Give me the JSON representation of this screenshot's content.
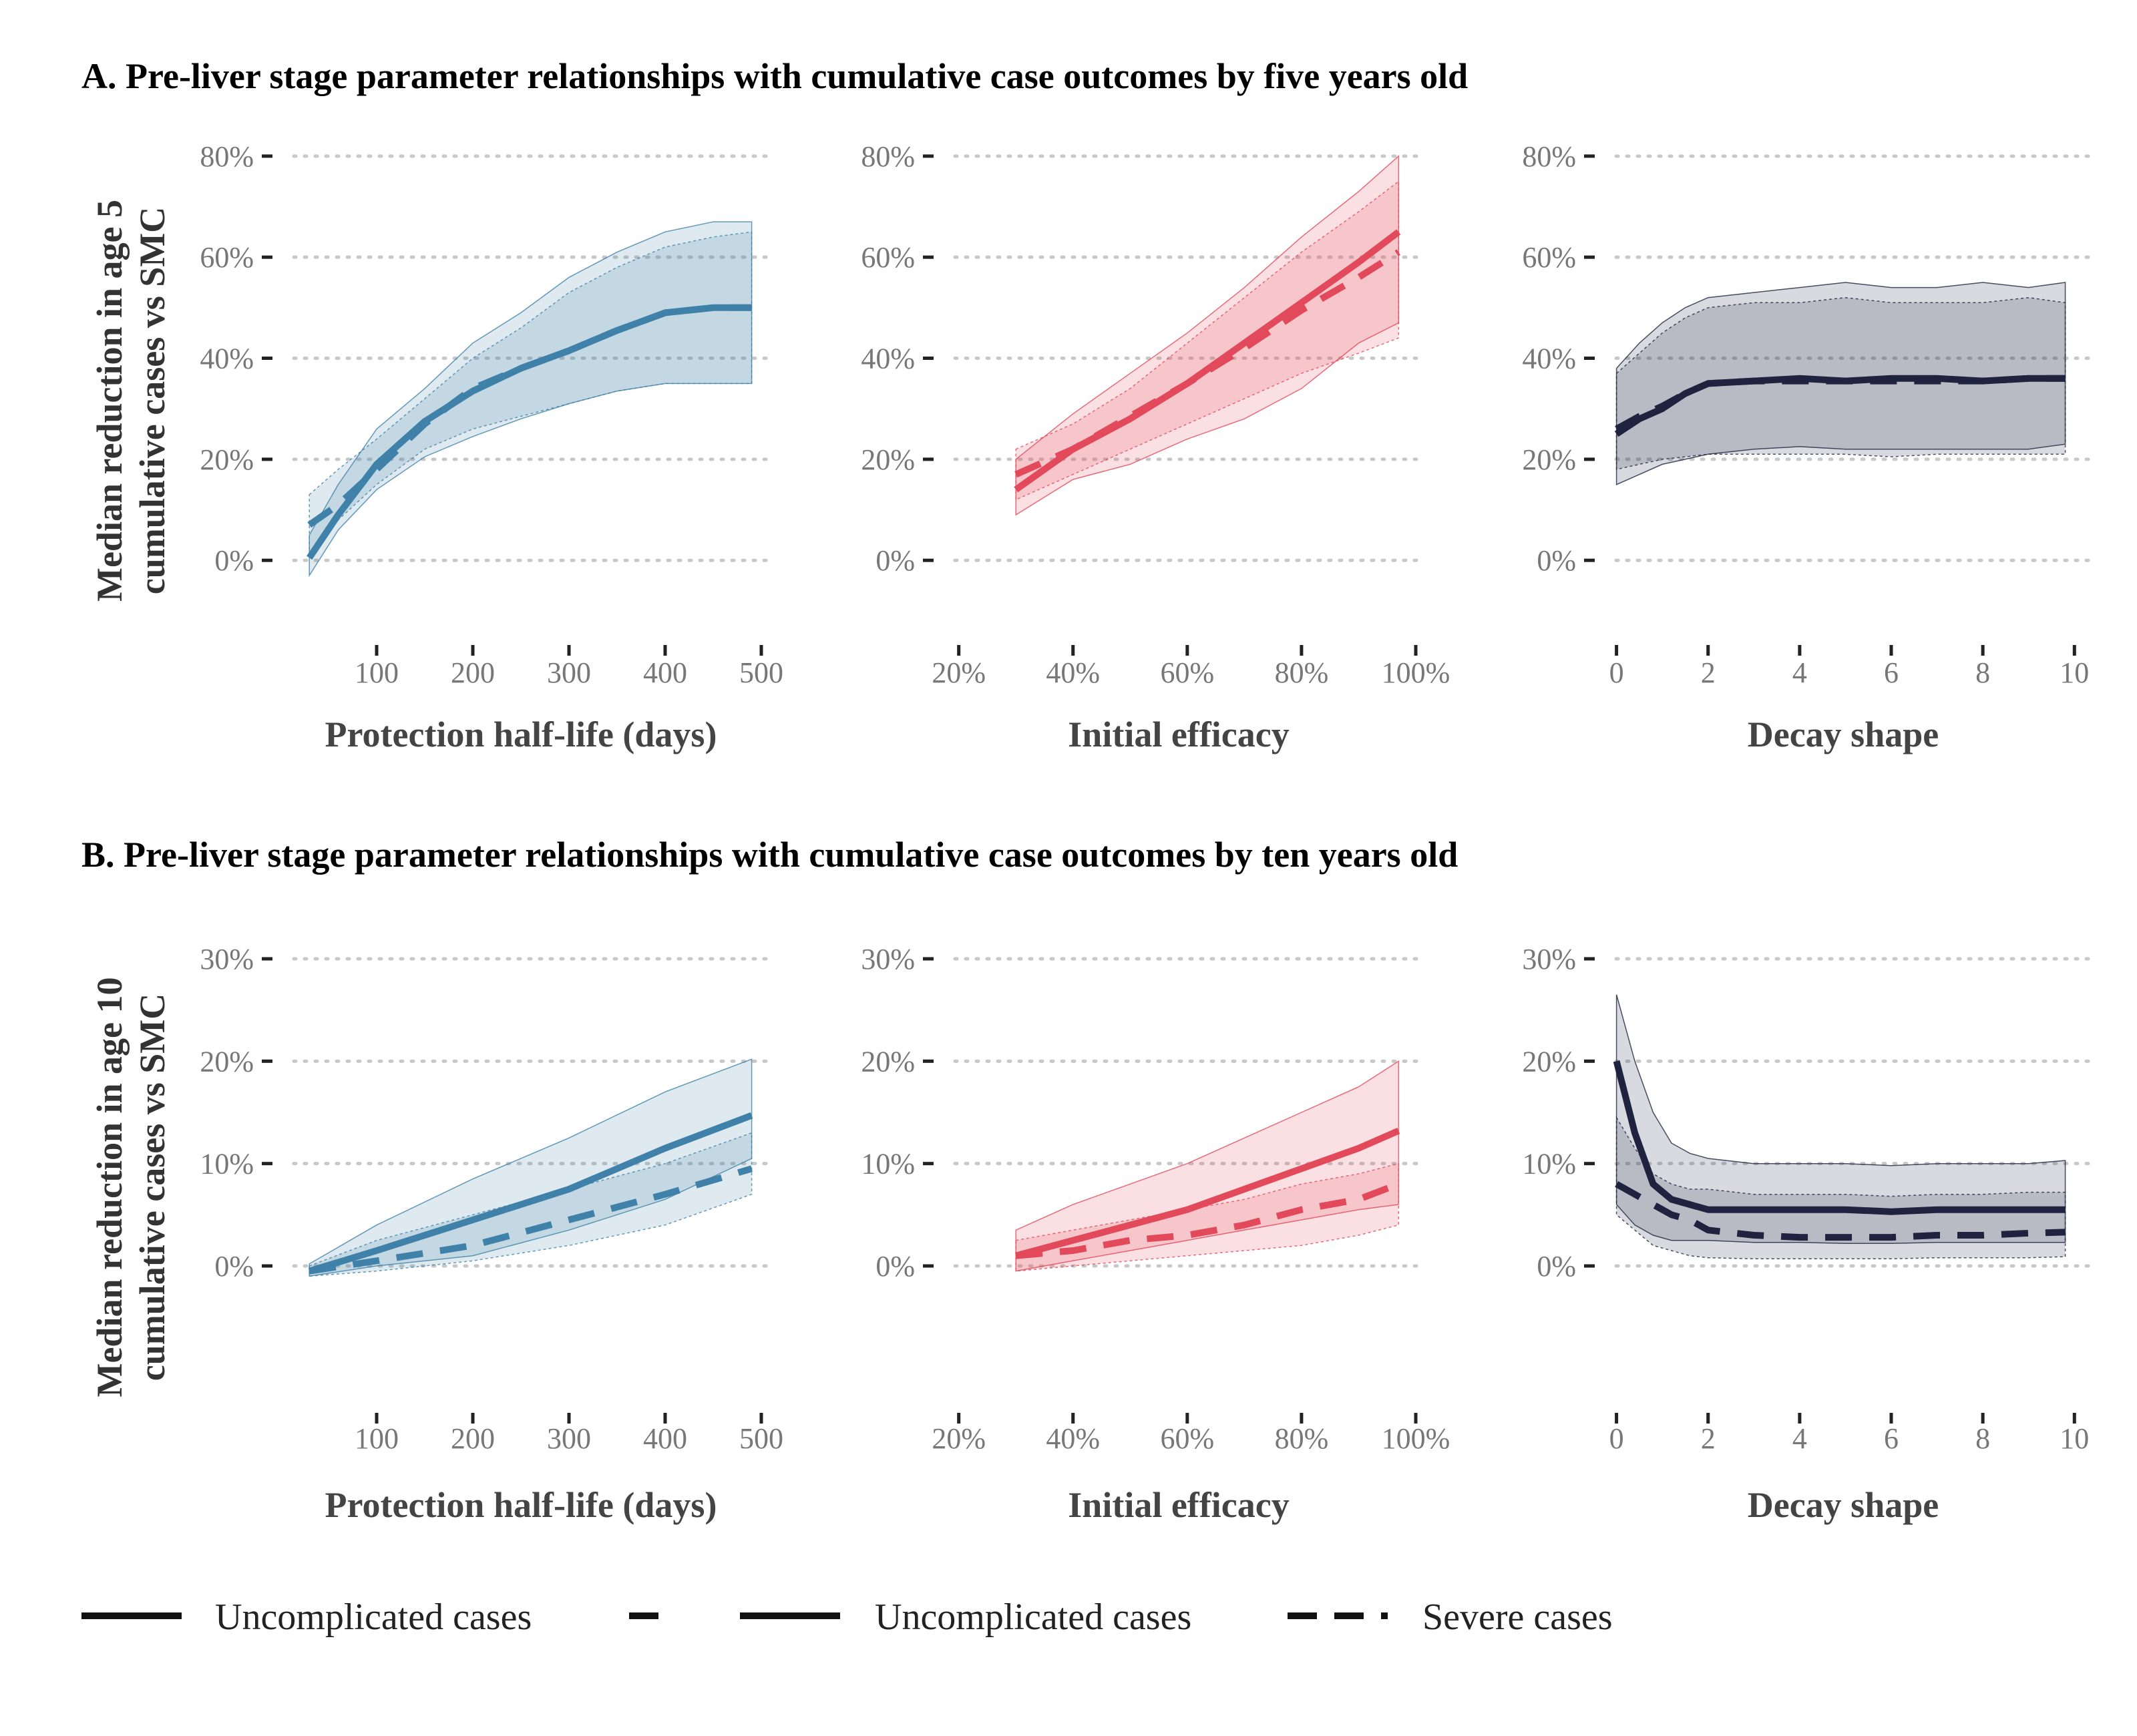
{
  "colors": {
    "half_life": "#3F81A8",
    "efficacy": "#E2495B",
    "decay": "#1F2340"
  },
  "chart_data": [
    {
      "type": "line",
      "title": "A. Pre-liver stage parameter relationships with cumulative case outcomes by five years old",
      "ylabel": "Median reduction in age 5 cumulative cases vs SMC",
      "ylim": [
        -12,
        85
      ],
      "yticks": [
        0,
        20,
        40,
        60,
        80
      ],
      "yticklabels": [
        "0%",
        "20%",
        "40%",
        "60%",
        "80%"
      ],
      "panels": [
        {
          "xlabel": "Protection half-life (days)",
          "xlim": [
            0,
            500
          ],
          "xticks": [
            100,
            200,
            300,
            400,
            500
          ],
          "xticklabels": [
            "100",
            "200",
            "300",
            "400",
            "500"
          ],
          "color": "#3F81A8",
          "x": [
            30,
            60,
            100,
            150,
            200,
            250,
            300,
            350,
            400,
            450,
            490
          ],
          "series": [
            {
              "name": "Uncomplicated cases",
              "values": [
                0.5,
                9,
                19,
                27.5,
                33.5,
                38,
                41.5,
                45.5,
                49,
                50,
                50
              ],
              "lower": [
                -3,
                6,
                14,
                20.5,
                24.5,
                28,
                31,
                33.5,
                35,
                35,
                35
              ],
              "upper": [
                5,
                15,
                26,
                34,
                43,
                49,
                56,
                61,
                65,
                67,
                67
              ]
            },
            {
              "name": "Severe cases",
              "values": [
                7,
                11,
                18,
                27,
                34,
                38,
                41.5,
                45.5,
                49,
                50,
                50
              ],
              "lower": [
                1,
                8,
                15,
                22,
                26,
                28.5,
                31,
                33.5,
                35,
                35,
                35
              ],
              "upper": [
                13,
                18,
                24,
                32,
                40,
                46,
                53,
                58,
                62,
                64,
                65
              ]
            }
          ]
        },
        {
          "xlabel": "Initial efficacy",
          "xlim": [
            17,
            100
          ],
          "xticks": [
            20,
            40,
            60,
            80,
            100
          ],
          "xticklabels": [
            "20%",
            "40%",
            "60%",
            "80%",
            "100%"
          ],
          "color": "#E2495B",
          "x": [
            30,
            40,
            50,
            60,
            70,
            80,
            90,
            97
          ],
          "series": [
            {
              "name": "Uncomplicated cases",
              "values": [
                14,
                22,
                28,
                35,
                43,
                51,
                59,
                65
              ],
              "lower": [
                9,
                16,
                19,
                24,
                28,
                34,
                43,
                47
              ],
              "upper": [
                20,
                29,
                37,
                45,
                54,
                64,
                73,
                80
              ]
            },
            {
              "name": "Severe cases",
              "values": [
                17,
                22,
                28.5,
                35,
                42,
                49.5,
                56,
                61
              ],
              "lower": [
                12,
                17,
                22,
                27,
                32,
                37,
                41,
                44
              ],
              "upper": [
                22,
                27,
                34,
                43,
                52,
                61,
                69,
                75
              ]
            }
          ]
        },
        {
          "xlabel": "Decay shape",
          "xlim": [
            -0.3,
            10.2
          ],
          "xticks": [
            0,
            2,
            4,
            6,
            8,
            10
          ],
          "xticklabels": [
            "0",
            "2",
            "4",
            "6",
            "8",
            "10"
          ],
          "color": "#1F2340",
          "x": [
            0,
            0.5,
            1,
            1.5,
            2,
            3,
            4,
            5,
            6,
            7,
            8,
            9,
            9.8
          ],
          "series": [
            {
              "name": "Uncomplicated cases",
              "values": [
                25,
                28,
                30,
                33,
                35,
                35.5,
                36,
                35.5,
                36,
                36,
                35.5,
                36,
                36
              ],
              "lower": [
                15,
                17,
                19,
                20,
                21,
                22,
                22.5,
                22,
                22,
                22,
                22,
                22,
                23
              ],
              "upper": [
                38,
                43,
                47,
                50,
                52,
                53,
                54,
                55,
                54,
                54,
                55,
                54,
                55
              ]
            },
            {
              "name": "Severe cases",
              "values": [
                26,
                28.5,
                30.5,
                33,
                35,
                35.5,
                35.5,
                35.5,
                35.5,
                35.5,
                35.5,
                36,
                36
              ],
              "lower": [
                18,
                19,
                20,
                20.5,
                21,
                21,
                21,
                21,
                20.5,
                21,
                21,
                21,
                21
              ],
              "upper": [
                37,
                41,
                45,
                48,
                50,
                51,
                51,
                52,
                51,
                51,
                51,
                52,
                51
              ]
            }
          ]
        }
      ]
    },
    {
      "type": "line",
      "title": "B. Pre-liver stage parameter relationships with cumulative case outcomes by ten years old",
      "ylabel": "Median reduction in age 10 cumulative cases vs SMC",
      "ylim": [
        -12,
        33
      ],
      "yticks": [
        0,
        10,
        20,
        30
      ],
      "yticklabels": [
        "0%",
        "10%",
        "20%",
        "30%"
      ],
      "panels": [
        {
          "xlabel": "Protection half-life (days)",
          "xlim": [
            0,
            500
          ],
          "xticks": [
            100,
            200,
            300,
            400,
            500
          ],
          "xticklabels": [
            "100",
            "200",
            "300",
            "400",
            "500"
          ],
          "color": "#3F81A8",
          "x": [
            30,
            100,
            200,
            300,
            400,
            490
          ],
          "series": [
            {
              "name": "Uncomplicated cases",
              "values": [
                -0.5,
                1.5,
                4.5,
                7.5,
                11.5,
                14.7
              ],
              "lower": [
                -1,
                0,
                1,
                3.5,
                6.5,
                10.5
              ],
              "upper": [
                0.2,
                4,
                8.5,
                12.5,
                17,
                20.2
              ]
            },
            {
              "name": "Severe cases",
              "values": [
                -0.5,
                0.5,
                2,
                4.5,
                7,
                9.5
              ],
              "lower": [
                -1,
                -0.5,
                0.5,
                2,
                4,
                7
              ],
              "upper": [
                0,
                2.5,
                5,
                7.5,
                10,
                13
              ]
            }
          ]
        },
        {
          "xlabel": "Initial efficacy",
          "xlim": [
            17,
            100
          ],
          "xticks": [
            20,
            40,
            60,
            80,
            100
          ],
          "xticklabels": [
            "20%",
            "40%",
            "60%",
            "80%",
            "100%"
          ],
          "color": "#E2495B",
          "x": [
            30,
            40,
            50,
            60,
            70,
            80,
            90,
            97
          ],
          "series": [
            {
              "name": "Uncomplicated cases",
              "values": [
                1,
                2.5,
                4,
                5.5,
                7.5,
                9.5,
                11.5,
                13.2
              ],
              "lower": [
                -0.5,
                0.5,
                1.5,
                2.5,
                3.5,
                4.5,
                5.5,
                6
              ],
              "upper": [
                3.5,
                6,
                8,
                10,
                12.5,
                15,
                17.5,
                20
              ]
            },
            {
              "name": "Severe cases",
              "values": [
                1,
                1.5,
                2.5,
                3,
                4,
                5.5,
                6.5,
                8
              ],
              "lower": [
                -0.5,
                0,
                0.5,
                1,
                1.5,
                2,
                3,
                4
              ],
              "upper": [
                2.5,
                3.5,
                4.5,
                5.5,
                6.5,
                8,
                9,
                10
              ]
            }
          ]
        },
        {
          "xlabel": "Decay shape",
          "xlim": [
            -0.3,
            10.2
          ],
          "xticks": [
            0,
            2,
            4,
            6,
            8,
            10
          ],
          "xticklabels": [
            "0",
            "2",
            "4",
            "6",
            "8",
            "10"
          ],
          "color": "#1F2340",
          "x": [
            0,
            0.4,
            0.8,
            1.2,
            1.6,
            2,
            3,
            4,
            5,
            6,
            7,
            8,
            9,
            9.8
          ],
          "series": [
            {
              "name": "Uncomplicated cases",
              "values": [
                20,
                13,
                8,
                6.5,
                6,
                5.5,
                5.5,
                5.5,
                5.5,
                5.3,
                5.5,
                5.5,
                5.5,
                5.5
              ],
              "lower": [
                6,
                4,
                3,
                2.5,
                2.5,
                2.5,
                2.3,
                2.3,
                2.2,
                2.2,
                2.3,
                2.3,
                2.3,
                2.3
              ],
              "upper": [
                26.5,
                20,
                15,
                12,
                11,
                10.5,
                10,
                10,
                10,
                9.8,
                10,
                10,
                10,
                10.3
              ]
            },
            {
              "name": "Severe cases",
              "values": [
                8,
                7,
                6,
                5,
                4.5,
                3.5,
                3,
                2.8,
                2.8,
                2.8,
                3,
                3,
                3.2,
                3.3
              ],
              "lower": [
                5,
                3.5,
                2,
                1.5,
                1,
                0.8,
                0.7,
                0.7,
                0.7,
                0.7,
                0.8,
                0.8,
                0.8,
                0.9
              ],
              "upper": [
                14.5,
                11.5,
                9,
                8,
                7.5,
                7.5,
                7,
                7,
                7,
                6.8,
                7,
                7,
                7.2,
                7.2
              ]
            }
          ]
        }
      ]
    }
  ],
  "legend": [
    {
      "label": "Uncomplicated cases",
      "style": "solid"
    },
    {
      "label": "",
      "style": "dashed"
    },
    {
      "label": "Uncomplicated cases",
      "style": "solid"
    },
    {
      "label": "Severe cases",
      "style": "dashed"
    }
  ]
}
